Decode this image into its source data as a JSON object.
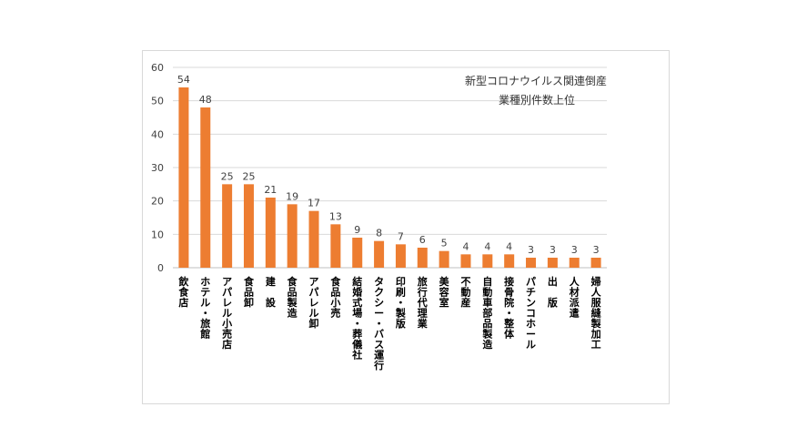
{
  "chart_data": {
    "type": "bar",
    "title_lines": [
      "新型コロナウイルス関連倒産",
      "業種別件数上位"
    ],
    "categories": [
      "飲食店",
      "ホテル・旅館",
      "アパレル小売店",
      "食品卸",
      "建　設",
      "食品製造",
      "アパレル卸",
      "食品小売",
      "結婚式場・葬儀社",
      "タクシー・バス運行",
      "印刷・製版",
      "旅行代理業",
      "美容室",
      "不動産",
      "自動車部品製造",
      "接骨院・整体",
      "パチンコホール",
      "出　版",
      "人材派遣",
      "婦人服縫製加工"
    ],
    "values": [
      54,
      48,
      25,
      25,
      21,
      19,
      17,
      13,
      9,
      8,
      7,
      6,
      5,
      4,
      4,
      4,
      3,
      3,
      3,
      3
    ],
    "yticks": [
      "0",
      "10",
      "20",
      "30",
      "40",
      "50",
      "60"
    ],
    "ylim": [
      0,
      60
    ],
    "xlabel": "",
    "ylabel": "",
    "bar_color": "#ed7d31",
    "grid": true,
    "legend": "none"
  }
}
